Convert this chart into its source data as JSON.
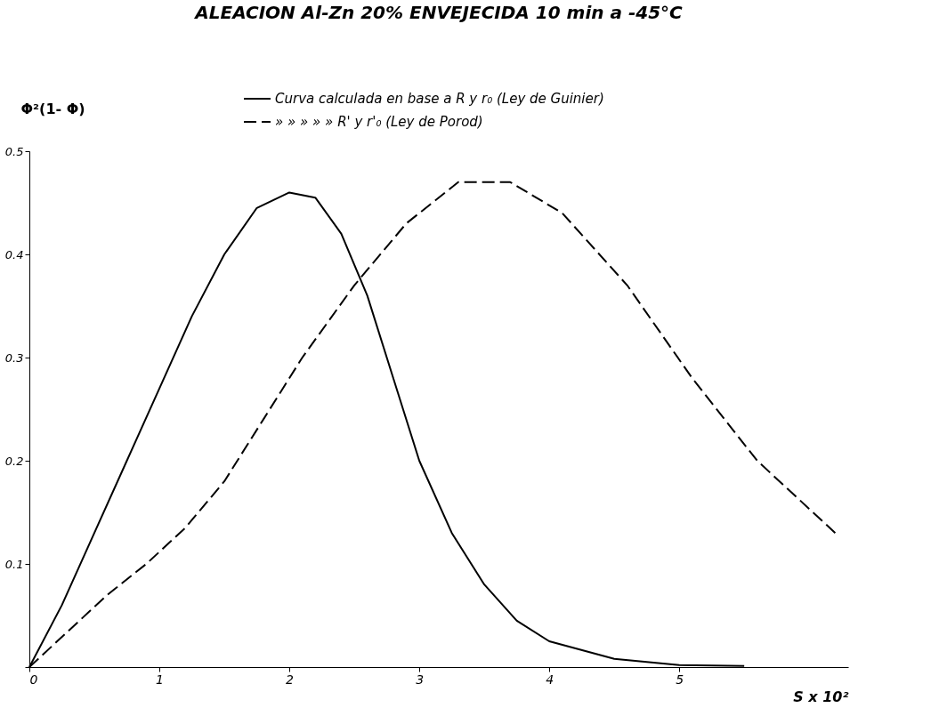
{
  "chart_data": {
    "type": "line",
    "title": "ALEACION Al-Zn 20% ENVEJECIDA 10 min a -45°C",
    "xlabel": "S x 10²",
    "ylabel": "Φ²(1- Φ)",
    "xlim": [
      0,
      6.3
    ],
    "ylim": [
      0,
      0.5
    ],
    "xticks": [
      0,
      1,
      2,
      3,
      4,
      5
    ],
    "yticks": [
      {
        "value": 0,
        "label": null
      },
      0.1,
      0.2,
      0.3,
      0.4,
      0.5
    ],
    "grid": false,
    "legend": "top",
    "series": [
      {
        "name": "Curva calculada en base a R y r₀ (Ley de Guinier)",
        "color": "#000000",
        "line_style": "solid",
        "x": [
          0,
          0.25,
          0.5,
          0.75,
          1,
          1.25,
          1.5,
          1.75,
          2,
          2.2,
          2.4,
          2.6,
          2.8,
          3,
          3.25,
          3.5,
          3.75,
          4,
          4.5,
          5,
          5.5
        ],
        "values": [
          0,
          0.06,
          0.13,
          0.2,
          0.27,
          0.34,
          0.4,
          0.445,
          0.46,
          0.455,
          0.42,
          0.36,
          0.28,
          0.2,
          0.13,
          0.08,
          0.045,
          0.025,
          0.008,
          0.002,
          0.001
        ]
      },
      {
        "name": "» » » » » R' y r'₀ (Ley de Porod)",
        "color": "#000000",
        "line_style": "dashed",
        "x": [
          0,
          0.3,
          0.6,
          0.9,
          1.2,
          1.5,
          1.8,
          2.1,
          2.5,
          2.9,
          3.3,
          3.7,
          4.1,
          4.6,
          5.1,
          5.6,
          6.2
        ],
        "values": [
          0,
          0.035,
          0.07,
          0.1,
          0.135,
          0.18,
          0.24,
          0.3,
          0.37,
          0.43,
          0.47,
          0.47,
          0.44,
          0.37,
          0.28,
          0.2,
          0.13
        ]
      }
    ]
  }
}
